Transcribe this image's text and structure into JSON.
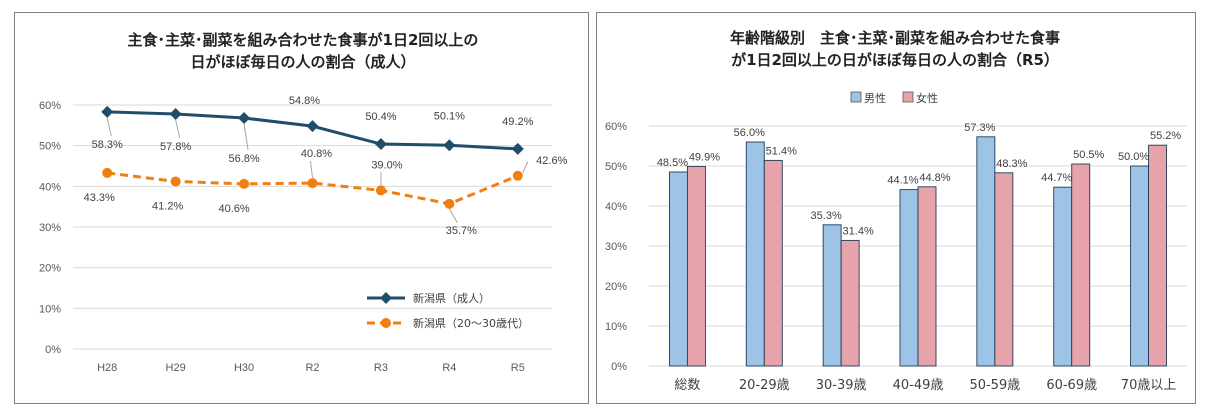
{
  "colors": {
    "series_adult": "#1f4e6b",
    "series_young": "#f07f12",
    "male": "#9dc3e6",
    "female": "#e6a3aa",
    "grid": "#d9d9d9"
  },
  "chart_data": [
    {
      "type": "line",
      "title_lines": [
        "主食･主菜･副菜を組み合わせた食事が1日2回以上の",
        "日がほぼ毎日の人の割合（成人）"
      ],
      "categories": [
        "H28",
        "H29",
        "H30",
        "R2",
        "R3",
        "R4",
        "R5"
      ],
      "ylim": [
        0,
        60
      ],
      "y_ticks": [
        "0%",
        "10%",
        "20%",
        "30%",
        "40%",
        "50%",
        "60%"
      ],
      "grid": true,
      "legend_position": "bottom-right",
      "series": [
        {
          "name": "新潟県（成人）",
          "values": [
            58.3,
            57.8,
            56.8,
            54.8,
            50.4,
            50.1,
            49.2
          ],
          "labels": [
            "58.3%",
            "57.8%",
            "56.8%",
            "54.8%",
            "50.4%",
            "50.1%",
            "49.2%"
          ],
          "style": "solid-diamond"
        },
        {
          "name": "新潟県（20～30歳代）",
          "values": [
            43.3,
            41.2,
            40.6,
            40.8,
            39.0,
            35.7,
            42.6
          ],
          "labels": [
            "43.3%",
            "41.2%",
            "40.6%",
            "40.8%",
            "39.0%",
            "35.7%",
            "42.6%"
          ],
          "style": "dashed-circle"
        }
      ]
    },
    {
      "type": "bar",
      "title_lines": [
        "年齢階級別　主食･主菜･副菜を組み合わせた食事",
        "が1日2回以上の日がほぼ毎日の人の割合（R5）"
      ],
      "categories": [
        "総数",
        "20-29歳",
        "30-39歳",
        "40-49歳",
        "50-59歳",
        "60-69歳",
        "70歳以上"
      ],
      "ylim": [
        0,
        60
      ],
      "y_ticks": [
        "0%",
        "10%",
        "20%",
        "30%",
        "40%",
        "50%",
        "60%"
      ],
      "grid": true,
      "legend_position": "top",
      "series": [
        {
          "name": "男性",
          "values": [
            48.5,
            56.0,
            35.3,
            44.1,
            57.3,
            44.7,
            50.0
          ],
          "labels": [
            "48.5%",
            "56.0%",
            "35.3%",
            "44.1%",
            "57.3%",
            "44.7%",
            "50.0%"
          ]
        },
        {
          "name": "女性",
          "values": [
            49.9,
            51.4,
            31.4,
            44.8,
            48.3,
            50.5,
            55.2
          ],
          "labels": [
            "49.9%",
            "51.4%",
            "31.4%",
            "44.8%",
            "48.3%",
            "50.5%",
            "55.2%"
          ]
        }
      ]
    }
  ]
}
